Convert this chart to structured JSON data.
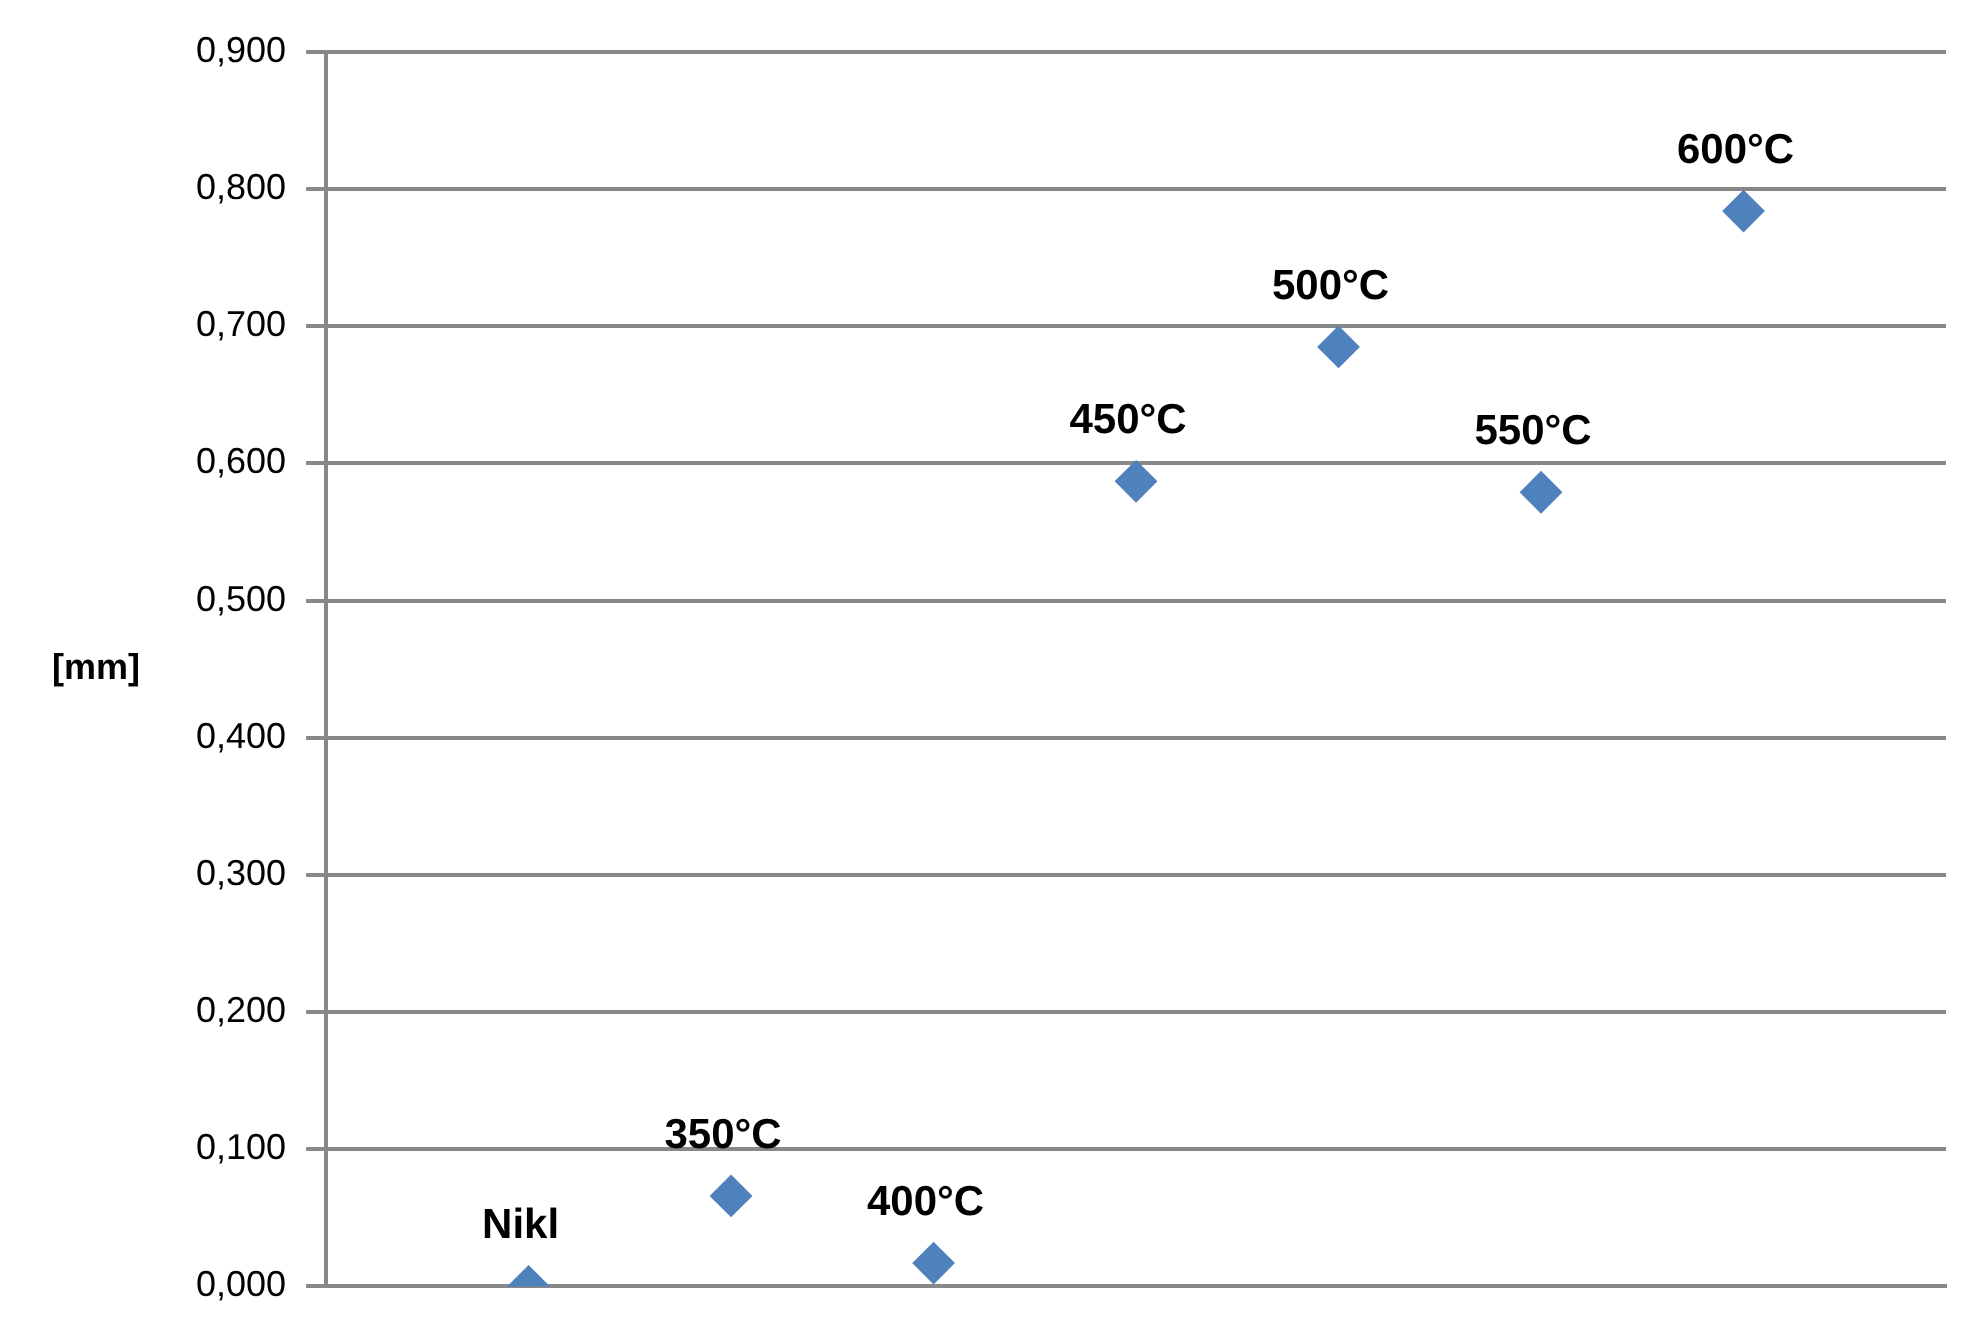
{
  "chart_data": {
    "type": "scatter",
    "ylabel": "[mm]",
    "categories": [
      "Nikl",
      "350°C",
      "400°C",
      "450°C",
      "500°C",
      "550°C",
      "600°C"
    ],
    "series": [
      {
        "color": "#4f81bd",
        "values": [
          0.0,
          0.066,
          0.017,
          0.587,
          0.685,
          0.579,
          0.784
        ]
      }
    ],
    "marker": "diamond",
    "grid": "y",
    "legend": false,
    "ylim": [
      0,
      0.9
    ],
    "yticks": [
      {
        "value": 0,
        "label": "0,000"
      },
      {
        "value": 0.1,
        "label": "0,100"
      },
      {
        "value": 0.2,
        "label": "0,200"
      },
      {
        "value": 0.3,
        "label": "0,300"
      },
      {
        "value": 0.4,
        "label": "0,400"
      },
      {
        "value": 0.5,
        "label": "0,500"
      },
      {
        "value": 0.6,
        "label": "0,600"
      },
      {
        "value": 0.7,
        "label": "0,700"
      },
      {
        "value": 0.8,
        "label": "0,800"
      },
      {
        "value": 0.9,
        "label": "0,900"
      }
    ]
  }
}
